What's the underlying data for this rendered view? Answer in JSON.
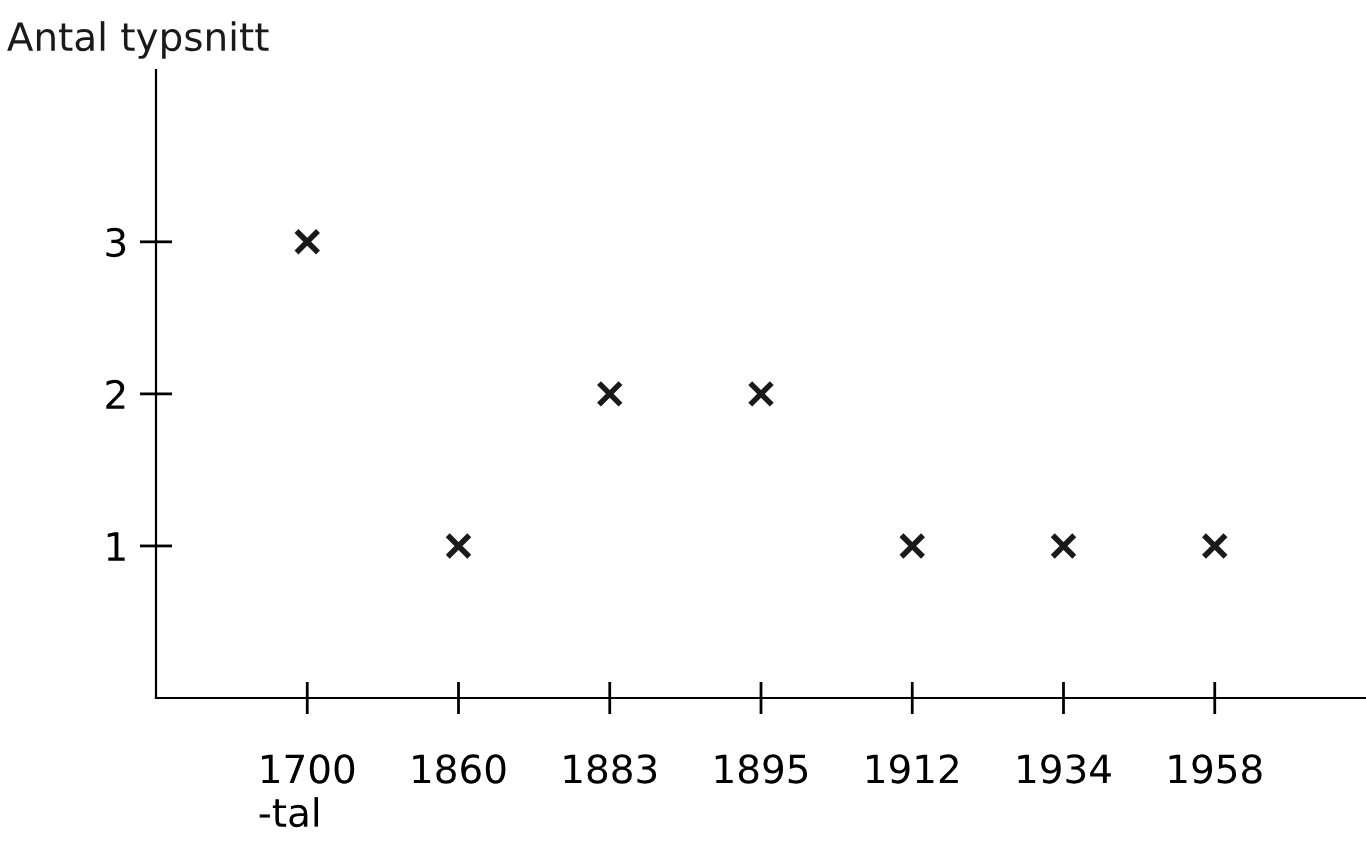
{
  "chart_data": {
    "type": "scatter",
    "ylabel": "Antal typsnitt",
    "categories": [
      "1700\n-tal",
      "1860",
      "1883",
      "1895",
      "1912",
      "1934",
      "1958"
    ],
    "series": [
      {
        "color": "#1a1a1a",
        "values": [
          3,
          1,
          2,
          2,
          1,
          1,
          1
        ]
      }
    ],
    "marker": "cross",
    "ylim": [
      0,
      4.13
    ],
    "yticks": [
      1,
      2,
      3
    ],
    "grid": false,
    "legend": false
  }
}
